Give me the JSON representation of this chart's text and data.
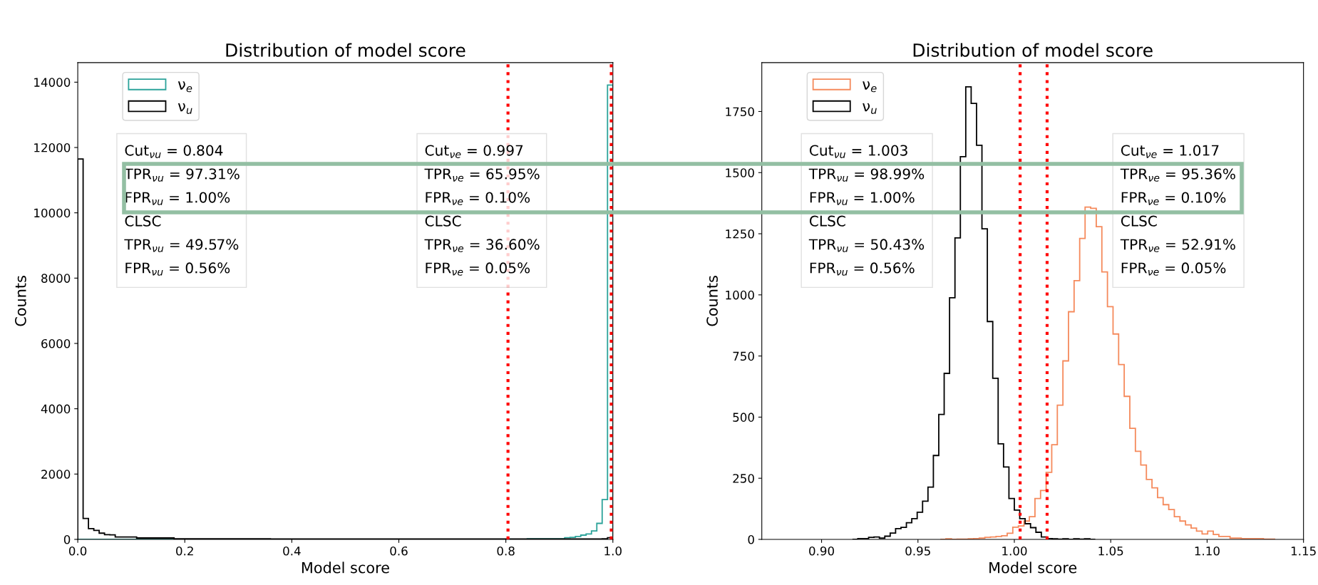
{
  "chart_data": [
    {
      "type": "histogram",
      "title": "Distribution of model score",
      "xlabel": "Model score",
      "ylabel": "Counts",
      "bins": [
        0,
        0.01,
        0.02,
        0.03,
        0.04,
        0.05,
        0.06,
        0.07,
        0.08,
        0.09,
        0.1,
        0.11,
        0.12,
        0.13,
        0.14,
        0.15,
        0.16,
        0.17,
        0.18,
        0.19,
        0.2,
        0.21,
        0.22,
        0.23,
        0.24,
        0.25,
        0.26,
        0.27,
        0.28,
        0.29,
        0.3,
        0.31,
        0.32,
        0.33,
        0.34,
        0.35,
        0.36,
        0.37,
        0.38,
        0.39,
        0.4,
        0.41,
        0.42,
        0.43,
        0.44,
        0.45,
        0.46,
        0.47,
        0.48,
        0.49,
        0.5,
        0.51,
        0.52,
        0.53,
        0.54,
        0.55,
        0.56,
        0.57,
        0.58,
        0.59,
        0.6,
        0.61,
        0.62,
        0.63,
        0.64,
        0.65,
        0.66,
        0.67,
        0.68,
        0.69,
        0.7,
        0.71,
        0.72,
        0.73,
        0.74,
        0.75,
        0.76,
        0.77,
        0.78,
        0.79,
        0.8,
        0.81,
        0.82,
        0.83,
        0.84,
        0.85,
        0.86,
        0.87,
        0.88,
        0.89,
        0.9,
        0.91,
        0.92,
        0.93,
        0.94,
        0.95,
        0.96,
        0.97,
        0.98,
        0.99,
        1.0
      ],
      "series": [
        {
          "name": "ν$_{e}$",
          "color": "#2ca39a",
          "values": [
            0,
            0,
            0,
            0,
            0,
            0,
            0,
            0,
            0,
            0,
            0,
            0,
            0,
            0,
            0,
            0,
            0,
            0,
            0,
            0,
            0,
            0,
            0,
            0,
            0,
            0,
            0,
            0,
            0,
            0,
            0,
            0,
            0,
            0,
            0,
            0,
            0,
            0,
            0,
            0,
            0,
            0,
            0,
            0,
            0,
            0,
            0,
            0,
            0,
            0,
            0,
            0,
            0,
            0,
            0,
            0,
            0,
            0,
            0,
            0,
            0,
            0,
            0,
            0,
            0,
            0,
            0,
            0,
            0,
            0,
            0,
            0,
            0,
            0,
            0,
            0,
            0,
            0,
            0,
            0,
            0,
            0,
            0,
            0,
            20,
            20,
            20,
            20,
            20,
            20,
            20,
            50,
            64,
            90,
            130,
            167,
            257,
            490,
            1220,
            13910
          ]
        },
        {
          "name": "ν$_{u}$",
          "color": "#000000",
          "values": [
            11650,
            640,
            330,
            275,
            190,
            145,
            140,
            72,
            72,
            72,
            72,
            43,
            43,
            43,
            43,
            43,
            43,
            43,
            15,
            15,
            15,
            15,
            15,
            15,
            15,
            15,
            15,
            15,
            15,
            15,
            15,
            15,
            15,
            15,
            15,
            15,
            10,
            10,
            10,
            10,
            10,
            10,
            10,
            10,
            10,
            10,
            10,
            10,
            10,
            10,
            10,
            10,
            10,
            10,
            10,
            10,
            10,
            10,
            10,
            10,
            10,
            10,
            10,
            10,
            10,
            10,
            10,
            10,
            10,
            10,
            10,
            10,
            10,
            10,
            10,
            10,
            10,
            10,
            10,
            10,
            10,
            10,
            10,
            10,
            10,
            10,
            10,
            10,
            10,
            10,
            10,
            10,
            10,
            10,
            10,
            10,
            10,
            10,
            20,
            50
          ]
        }
      ],
      "xlim": [
        0,
        1
      ],
      "xticks": [
        {
          "value": 0,
          "label": "0.0"
        },
        {
          "value": 0.2,
          "label": "0.2"
        },
        {
          "value": 0.4,
          "label": "0.4"
        },
        {
          "value": 0.6,
          "label": "0.6"
        },
        {
          "value": 0.8,
          "label": "0.8"
        },
        {
          "value": 1,
          "label": "1.0"
        }
      ],
      "ylim": [
        0,
        14600
      ],
      "yticks": [
        0,
        2000,
        4000,
        6000,
        8000,
        10000,
        12000,
        14000
      ],
      "ref_lines": [
        {
          "axis": "x",
          "value": 0.804,
          "color": "#ff0000",
          "line_style": "dotted"
        },
        {
          "axis": "x",
          "value": 0.997,
          "color": "#ff0000",
          "line_style": "dotted"
        }
      ],
      "annotations": [
        "Cut$_{νu}$ = 0.804",
        "TPR$_{νu}$ = 97.31%",
        "FPR$_{νu}$ = 1.00%",
        "CLSC",
        "TPR$_{νu}$ = 49.57%",
        "FPR$_{νu}$ = 0.56%",
        "Cut$_{νe}$ = 0.997",
        "TPR$_{νe}$ = 65.95%",
        "FPR$_{νe}$ = 0.10%",
        "CLSC",
        "TPR$_{νe}$ = 36.60%",
        "FPR$_{νe}$ = 0.05%"
      ],
      "legend": "top left",
      "grid": false
    },
    {
      "type": "histogram",
      "title": "Distribution of model score",
      "xlabel": "Model score",
      "ylabel": "Counts",
      "bins": [
        0.9616,
        0.9645,
        0.9674,
        0.9703,
        0.9732,
        0.9761,
        0.9789,
        0.9818,
        0.9847,
        0.9876,
        0.9905,
        0.9934,
        0.9963,
        0.9992,
        1.0021,
        1.005,
        1.0078,
        1.0107,
        1.0136,
        1.0165,
        1.0194,
        1.0223,
        1.0252,
        1.0281,
        1.031,
        1.0339,
        1.0367,
        1.0396,
        1.0425,
        1.0454,
        1.0483,
        1.0512,
        1.0541,
        1.057,
        1.0599,
        1.0628,
        1.0656,
        1.0685,
        1.0714,
        1.0743,
        1.0772,
        1.0801,
        1.083,
        1.0859,
        1.0888,
        1.0917,
        1.0945,
        1.0974,
        1.1003,
        1.1032,
        1.1061,
        1.109,
        1.1119,
        1.1148,
        1.1177,
        1.1206,
        1.1234,
        1.1263,
        1.1292,
        1.1321,
        1.135
      ],
      "series": [
        {
          "name": "ν$_{e}$",
          "color": "#f58a5c",
          "values": [
            0,
            2,
            0,
            1,
            1,
            2,
            3,
            5,
            8,
            10,
            12,
            15,
            25,
            50,
            55,
            75,
            93,
            167,
            200,
            274,
            387,
            549,
            730,
            931,
            1058,
            1231,
            1359,
            1354,
            1279,
            1094,
            952,
            840,
            715,
            585,
            454,
            360,
            304,
            245,
            211,
            171,
            142,
            122,
            93,
            75,
            59,
            46,
            34,
            22,
            34,
            20,
            12,
            12,
            5,
            5,
            3,
            3,
            3,
            3,
            1,
            1
          ]
        },
        {
          "name": "ν$_{u}$",
          "color": "#000000",
          "bins": [
            0.916,
            0.9188,
            0.9216,
            0.9244,
            0.9272,
            0.93,
            0.9328,
            0.9356,
            0.9384,
            0.9412,
            0.944,
            0.9468,
            0.9496,
            0.9524,
            0.9552,
            0.958,
            0.9608,
            0.9636,
            0.9664,
            0.9692,
            0.972,
            0.9748,
            0.9776,
            0.9804,
            0.9832,
            0.986,
            0.9888,
            0.9916,
            0.9944,
            0.9972,
            1.0,
            1.0028,
            1.0056,
            1.0084,
            1.0112,
            1.014,
            1.0168,
            1.0196,
            1.0224,
            1.0252,
            1.028,
            1.0308,
            1.0336,
            1.0364,
            1.0392,
            1.042
          ],
          "values": [
            0,
            3,
            3,
            8,
            10,
            5,
            13,
            26,
            44,
            49,
            68,
            85,
            111,
            156,
            214,
            343,
            511,
            679,
            988,
            1233,
            1565,
            1851,
            1783,
            1612,
            1270,
            891,
            659,
            391,
            296,
            167,
            120,
            85,
            64,
            48,
            29,
            10,
            3,
            2,
            1,
            2,
            0,
            2,
            1,
            2,
            0
          ]
        }
      ],
      "xlim": [
        0.869,
        1.15
      ],
      "xticks": [
        {
          "value": 0.9,
          "label": "0.90"
        },
        {
          "value": 0.95,
          "label": "0.95"
        },
        {
          "value": 1.0,
          "label": "1.00"
        },
        {
          "value": 1.05,
          "label": "1.05"
        },
        {
          "value": 1.1,
          "label": "1.10"
        },
        {
          "value": 1.15,
          "label": "1.15"
        }
      ],
      "ylim": [
        0,
        1950
      ],
      "yticks": [
        0,
        250,
        500,
        750,
        1000,
        1250,
        1500,
        1750
      ],
      "ref_lines": [
        {
          "axis": "x",
          "value": 1.003,
          "color": "#ff0000",
          "line_style": "dotted"
        },
        {
          "axis": "x",
          "value": 1.017,
          "color": "#ff0000",
          "line_style": "dotted"
        }
      ],
      "annotations": [
        "Cut$_{νu}$ = 1.003",
        "TPR$_{νu}$ = 98.99%",
        "FPR$_{νu}$ = 1.00%",
        "CLSC",
        "TPR$_{νu}$ = 50.43%",
        "FPR$_{νu}$ = 0.56%",
        "Cut$_{νe}$ = 1.017",
        "TPR$_{νe}$ = 95.36%",
        "FPR$_{νe}$ = 0.10%",
        "CLSC",
        "TPR$_{νe}$ = 52.91%",
        "FPR$_{νe}$ = 0.05%"
      ],
      "legend": "top left",
      "grid": false
    }
  ]
}
